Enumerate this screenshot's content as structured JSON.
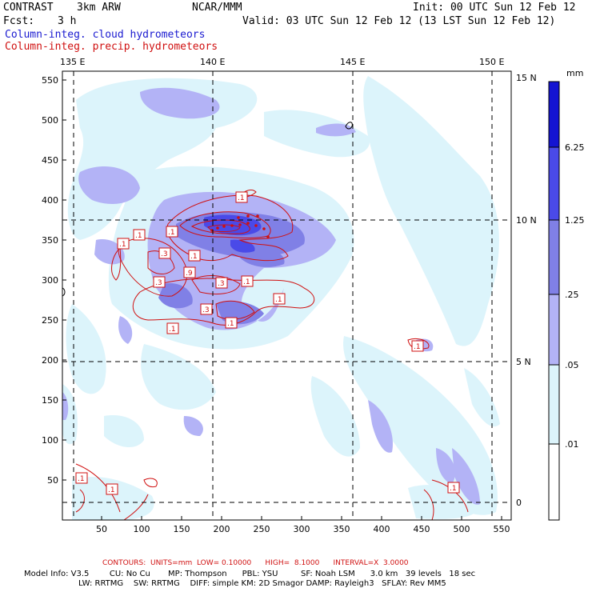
{
  "header": {
    "model_name": "CONTRAST",
    "model_res": "3km ARW",
    "org": "NCAR/MMM",
    "init": "Init: 00 UTC Sun 12 Feb 12",
    "fcst_label": "Fcst:",
    "fcst_value": "3 h",
    "valid": "Valid: 03 UTC Sun 12 Feb 12 (13 LST Sun 12 Feb 12)",
    "field1": "Column-integ. cloud hydrometeors",
    "field2": "Column-integ. precip. hydrometeors"
  },
  "map": {
    "lon_labels": [
      "135 E",
      "140 E",
      "145 E",
      "150 E"
    ],
    "lat_labels": [
      "15 N",
      "10 N",
      "5 N",
      "0"
    ],
    "y_ticks": [
      "550",
      "500",
      "450",
      "400",
      "350",
      "300",
      "250",
      "200",
      "150",
      "100",
      "50"
    ],
    "x_ticks": [
      "50",
      "100",
      "150",
      "200",
      "250",
      "300",
      "350",
      "400",
      "450",
      "500",
      "550"
    ],
    "contour_labels": [
      ".1",
      ".1",
      ".1",
      ".1",
      ".3",
      ".1",
      ".9",
      ".3",
      ".3",
      ".1",
      ".1",
      ".3",
      ".1",
      ".1",
      ".1",
      ".1",
      ".1",
      ".1"
    ],
    "colors": {
      "c1": "#dcf4fb",
      "c2": "#b3b3f6",
      "c3": "#8080e6",
      "c4": "#4a4ae8",
      "c5": "#1414d2",
      "contour": "#d01010"
    }
  },
  "colorbar": {
    "unit": "mm",
    "labels": [
      "6.25",
      "1.25",
      ".25",
      ".05",
      ".01"
    ]
  },
  "footer": {
    "contours": "CONTOURS:  UNITS=mm  LOW= 0.10000      HIGH=  8.1000      INTERVAL=X  3.0000",
    "line1": "Model Info: V3.5        CU: No Cu       MP: Thompson      PBL: YSU         SF: Noah LSM      3.0 km   39 levels   18 sec",
    "line2": "LW: RRTMG    SW: RRTMG    DIFF: simple KM: 2D Smagor DAMP: Rayleigh3   SFLAY: Rev MM5"
  }
}
